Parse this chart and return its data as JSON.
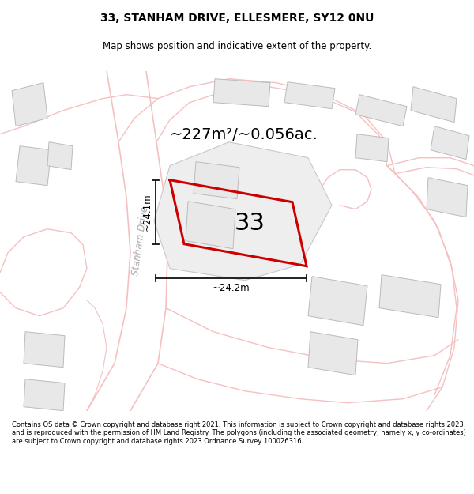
{
  "title": "33, STANHAM DRIVE, ELLESMERE, SY12 0NU",
  "subtitle": "Map shows position and indicative extent of the property.",
  "footer": "Contains OS data © Crown copyright and database right 2021. This information is subject to Crown copyright and database rights 2023 and is reproduced with the permission of HM Land Registry. The polygons (including the associated geometry, namely x, y co-ordinates) are subject to Crown copyright and database rights 2023 Ordnance Survey 100026316.",
  "area_label": "~227m²/~0.056ac.",
  "width_label": "~24.2m",
  "height_label": "~24.1m",
  "road_label": "Stanham Drive",
  "plot_number": "33",
  "bg_color": "#ffffff",
  "road_line_color": "#f5c0c0",
  "building_fill": "#e8e8e8",
  "building_edge": "#bbbbbb",
  "plot_color": "#cc0000",
  "dim_color": "#111111",
  "road_text_color": "#aaaaaa",
  "title_fontsize": 10,
  "subtitle_fontsize": 8.5,
  "footer_fontsize": 6.0
}
